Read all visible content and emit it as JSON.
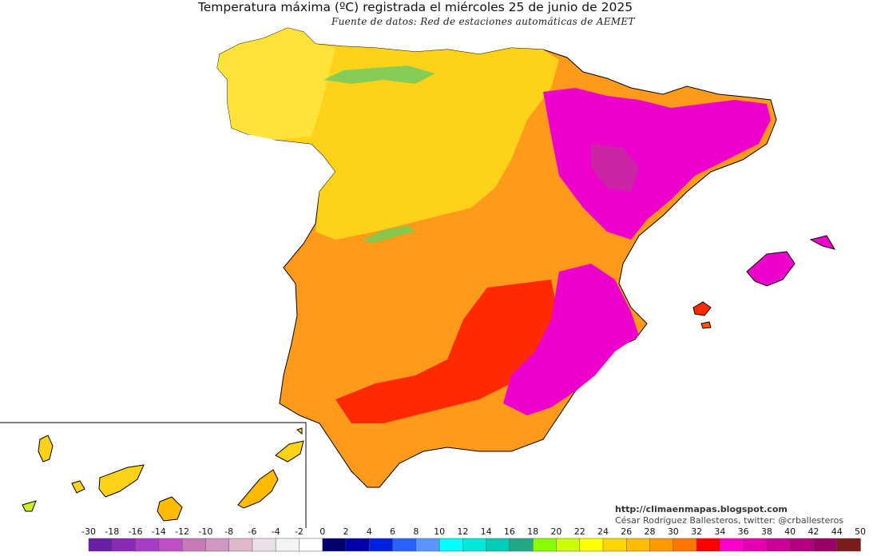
{
  "map": {
    "title": "Temperatura máxima (ºC) registrada el miércoles 25 de junio de 2025",
    "subtitle": "Fuente de datos: Red de estaciones automáticas de AEMET",
    "credit_url": "http://climaenmapas.blogspot.com",
    "credit_author": "César Rodríguez Ballesteros, twitter: @crballesteros"
  },
  "legend": {
    "labels": [
      "-30",
      "-18",
      "-16",
      "-14",
      "-12",
      "-10",
      "-8",
      "-6",
      "-4",
      "-2",
      "0",
      "2",
      "4",
      "6",
      "8",
      "10",
      "12",
      "14",
      "16",
      "18",
      "20",
      "22",
      "24",
      "26",
      "28",
      "30",
      "32",
      "34",
      "36",
      "38",
      "40",
      "42",
      "44",
      "50"
    ],
    "colors": [
      "#6a1fa8",
      "#8a2bb8",
      "#a83cc8",
      "#c050c8",
      "#c87ab8",
      "#d098c0",
      "#e0b8cc",
      "#ece0e8",
      "#f4f4f4",
      "#ffffff",
      "#000070",
      "#0000a8",
      "#0022e0",
      "#2a62ff",
      "#5a96ff",
      "#00ffff",
      "#00e8d8",
      "#00ccb8",
      "#22aa88",
      "#88ff00",
      "#ccff00",
      "#ffff00",
      "#ffd700",
      "#ffbb00",
      "#ff9900",
      "#ff7700",
      "#ff0000",
      "#ff00cc",
      "#e600b4",
      "#cc0099",
      "#b3007f",
      "#990066",
      "#7a1c1c"
    ]
  }
}
